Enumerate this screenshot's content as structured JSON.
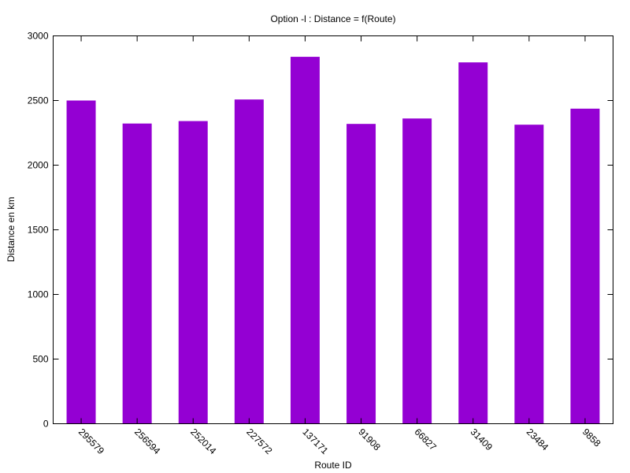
{
  "chart_data": {
    "type": "bar",
    "title": "Option -l : Distance = f(Route)",
    "xlabel": "Route ID",
    "ylabel": "Distance en km",
    "categories": [
      "295579",
      "256594",
      "252014",
      "227572",
      "137171",
      "91908",
      "66827",
      "31409",
      "23484",
      "9858"
    ],
    "values": [
      2500,
      2322,
      2341,
      2508,
      2838,
      2319,
      2361,
      2795,
      2313,
      2437
    ],
    "ylim": [
      0,
      3000
    ],
    "yticks": [
      0,
      500,
      1000,
      1500,
      2000,
      2500,
      3000
    ],
    "grid": false,
    "legend": "none",
    "bar_color": "#9400d3"
  }
}
